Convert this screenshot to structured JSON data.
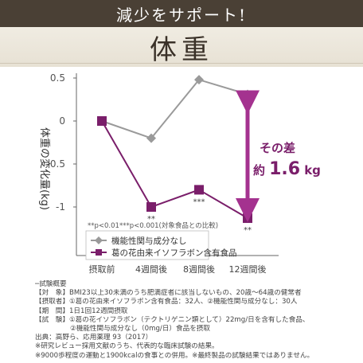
{
  "header": {
    "text": "減少をサポート!"
  },
  "banner": {
    "title": "体重"
  },
  "chart_data": {
    "type": "line",
    "categories": [
      "摂取前",
      "4週間後",
      "8週間後",
      "12週間後"
    ],
    "y_ticks": [
      "0.5",
      "0",
      "-0.5",
      "-1"
    ],
    "ylim": [
      -1.25,
      0.55
    ],
    "ylabel": "体重の変化量(kg)",
    "grid": false,
    "series": [
      {
        "name": "機能性関与成分なし",
        "values": [
          0,
          -0.2,
          0.48,
          0.31
        ],
        "color": "#9a9a9a",
        "marker": "diamond"
      },
      {
        "name": "葛の花由来イソフラボン含有食品",
        "values": [
          0,
          -1.0,
          -0.8,
          -1.13
        ],
        "color": "#7a1e6a",
        "marker": "square"
      }
    ],
    "significance": [
      {
        "category": "4週間後",
        "mark": "**"
      },
      {
        "category": "8週間後",
        "mark": "***"
      },
      {
        "category": "12週間後",
        "mark": "**"
      }
    ],
    "note": "**p<0.01***p<0.001(対象食品との比較)",
    "annotation": {
      "line1": "その差",
      "prefix": "約",
      "value": "1.6",
      "unit": "kg"
    },
    "legend_position": "bottom-left"
  },
  "footer": {
    "heading": "試験概要",
    "lines": [
      "【対　象】BMI23以上30未満のうち肥満症者に該当しないもの、20歳～64歳の健常者",
      "【摂取者】①葛の花由来イソフラボン含有食品：32人、②機能性関与成分なし：30人",
      "【期　間】1日1回12週間摂取",
      "【試　験】①葛の花イソフラボン（テクトリゲニン類として）22mg/日を含有した食品、",
      "②機能性関与成分なし（0mg/日）食品を摂取",
      "出典：高野ら、応用薬理 93（2017）",
      "※研究レビュー採用文献のうち、代表的な臨床試験の結果。",
      "※9000歩程度の運動と1900kcalの食事との併用。※最終製品の試験結果ではありません。"
    ]
  },
  "colors": {
    "header_bg": "#4a4035",
    "accent": "#7a1e6a",
    "control": "#9a9a9a",
    "arrow": "#a4328f"
  }
}
